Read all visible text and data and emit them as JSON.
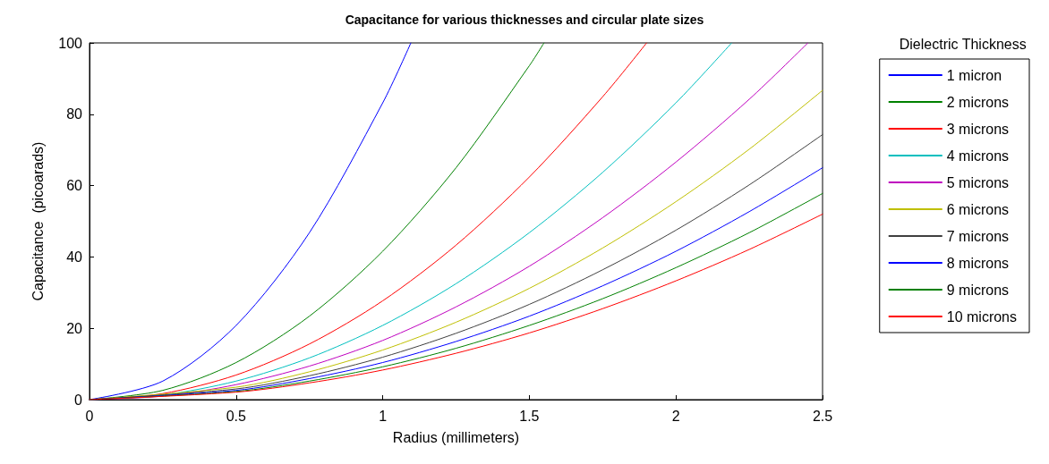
{
  "chart_data": {
    "type": "line",
    "title": "Capacitance for various thicknesses and circular plate sizes",
    "xlabel": "Radius (millimeters)",
    "ylabel": "Capacitance  (picoarads)",
    "legend_title": "Dielectric Thickness",
    "legend": "right",
    "grid": false,
    "marker": "none",
    "line_style": "solid",
    "xlim": [
      0,
      2.5
    ],
    "xticks": [
      0,
      0.5,
      1,
      1.5,
      2,
      2.5
    ],
    "ylim": [
      0,
      100
    ],
    "yticks": [
      0,
      20,
      40,
      60,
      80,
      100
    ],
    "series": [
      {
        "name": "1 micron",
        "color": "#0000ff",
        "x": [
          0,
          0.25,
          0.5,
          0.75,
          1,
          1.096
        ],
        "values": [
          0,
          5.2,
          20.8,
          46.8,
          83.2,
          100
        ]
      },
      {
        "name": "2 microns",
        "color": "#008000",
        "x": [
          0,
          0.25,
          0.5,
          0.75,
          1,
          1.25,
          1.5,
          1.55
        ],
        "values": [
          0,
          2.6,
          10.4,
          23.4,
          41.6,
          65,
          93.6,
          100
        ]
      },
      {
        "name": "3 microns",
        "color": "#ff0000",
        "x": [
          0,
          0.25,
          0.5,
          0.75,
          1,
          1.25,
          1.5,
          1.75,
          1.9
        ],
        "values": [
          0,
          1.7,
          6.9,
          15.6,
          27.7,
          43.3,
          62.4,
          84.9,
          100
        ]
      },
      {
        "name": "4 microns",
        "color": "#00bfbf",
        "x": [
          0,
          0.25,
          0.5,
          0.75,
          1,
          1.25,
          1.5,
          1.75,
          2,
          2.19
        ],
        "values": [
          0,
          1.3,
          5.2,
          11.7,
          20.8,
          32.5,
          46.8,
          63.7,
          83.2,
          100
        ]
      },
      {
        "name": "5 microns",
        "color": "#bf00bf",
        "x": [
          0,
          0.25,
          0.5,
          0.75,
          1,
          1.25,
          1.5,
          1.75,
          2,
          2.25,
          2.45
        ],
        "values": [
          0,
          1,
          4.2,
          9.4,
          16.6,
          26,
          37.4,
          51,
          66.6,
          84.2,
          100
        ]
      },
      {
        "name": "6 microns",
        "color": "#bfbf00",
        "x": [
          0,
          0.5,
          0.75,
          1,
          1.25,
          1.5,
          1.75,
          2,
          2.25,
          2.5
        ],
        "values": [
          0,
          3.5,
          7.8,
          13.9,
          21.7,
          31.2,
          42.5,
          55.5,
          70.2,
          86.7
        ]
      },
      {
        "name": "7 microns",
        "color": "#404040",
        "x": [
          0,
          0.5,
          0.75,
          1,
          1.25,
          1.5,
          1.75,
          2,
          2.25,
          2.5
        ],
        "values": [
          0,
          3,
          6.7,
          11.9,
          18.6,
          26.7,
          36.4,
          47.5,
          60.2,
          74.3
        ]
      },
      {
        "name": "8 microns",
        "color": "#0000ff",
        "x": [
          0,
          0.5,
          0.75,
          1,
          1.25,
          1.5,
          1.75,
          2,
          2.25,
          2.5
        ],
        "values": [
          0,
          2.6,
          5.9,
          10.4,
          16.3,
          23.4,
          31.9,
          41.6,
          52.7,
          65
        ]
      },
      {
        "name": "9 microns",
        "color": "#008000",
        "x": [
          0,
          0.5,
          0.75,
          1,
          1.25,
          1.5,
          1.75,
          2,
          2.25,
          2.5
        ],
        "values": [
          0,
          2.3,
          5.2,
          9.2,
          14.4,
          20.8,
          28.3,
          37,
          46.8,
          57.8
        ]
      },
      {
        "name": "10 microns",
        "color": "#ff0000",
        "x": [
          0,
          0.5,
          0.75,
          1,
          1.25,
          1.5,
          1.75,
          2,
          2.25,
          2.5
        ],
        "values": [
          0,
          2.1,
          4.7,
          8.3,
          13,
          18.7,
          25.5,
          33.3,
          42.1,
          52
        ]
      }
    ]
  }
}
